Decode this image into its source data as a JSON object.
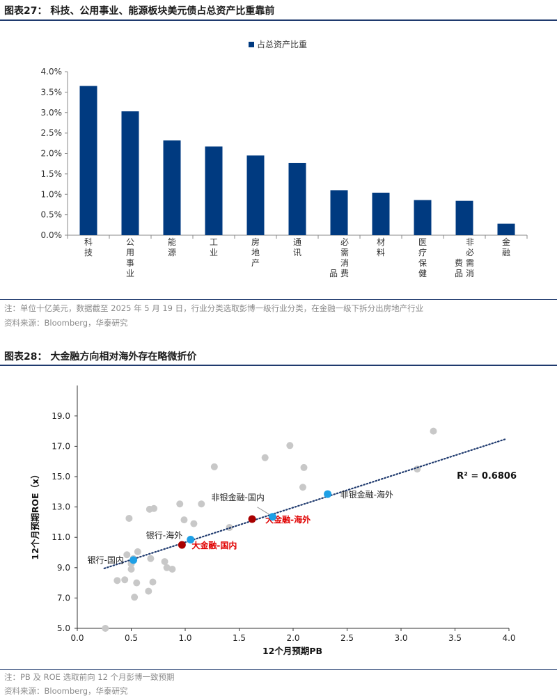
{
  "figure1": {
    "title": "图表27：  科技、公用事业、能源板块美元债占总资产比重靠前",
    "note": "注：单位十亿美元，数据截至 2025 年 5 月 19 日，行业分类选取彭博一级行业分类，在金融一级下拆分出房地产行业",
    "source": "资料来源：Bloomberg，华泰研究"
  },
  "figure2": {
    "title": "图表28：  大金融方向相对海外存在略微折价",
    "note": "注：PB 及 ROE 选取前向 12 个月彭博一致预期",
    "source": "资料来源：Bloomberg，华泰研究"
  },
  "colors": {
    "bar": "#003a80",
    "highlight_light": "#1ea0e6",
    "highlight_dark": "#a80000",
    "grey_point": "#c8c8c8",
    "trend": "#1f3a6e",
    "annotation_red": "#e00000",
    "rule": "#1f3a6e"
  },
  "chart_data": [
    {
      "type": "bar",
      "legend": "占总资产比重",
      "legend_position": "top",
      "categories": [
        "科技",
        "公用事业",
        "能源",
        "工业",
        "房地产",
        "通讯",
        "必需消费品",
        "材料",
        "医疗保健",
        "非必需消费品",
        "金融"
      ],
      "category_display": [
        "科\n技",
        "公\n用\n事\n业",
        "能\n源",
        "工\n业",
        "房\n地\n产",
        "通\n讯",
        "必\n需\n消\n费\n品",
        "材\n料",
        "医\n疗\n保\n健",
        "非\n必\n需\n消\n费\n品",
        "金\n融"
      ],
      "values": [
        3.65,
        3.03,
        2.32,
        2.17,
        1.95,
        1.77,
        1.1,
        1.04,
        0.86,
        0.84,
        0.28
      ],
      "ylim": [
        0,
        4.0
      ],
      "yticks": [
        "0.0%",
        "0.5%",
        "1.0%",
        "1.5%",
        "2.0%",
        "2.5%",
        "3.0%",
        "3.5%",
        "4.0%"
      ],
      "grid": false
    },
    {
      "type": "scatter",
      "xlabel": "12个月预期PB",
      "ylabel": "12个月预期ROE（x）",
      "xlim": [
        0,
        4.0
      ],
      "ylim": [
        5.0,
        20.0
      ],
      "xticks": [
        "0.0",
        "0.5",
        "1.0",
        "1.5",
        "2.0",
        "2.5",
        "3.0",
        "3.5",
        "4.0"
      ],
      "yticks": [
        "5.0",
        "7.0",
        "9.0",
        "11.0",
        "13.0",
        "15.0",
        "17.0",
        "19.0"
      ],
      "grid": false,
      "r_squared_label": "R² = 0.6806",
      "trendline": [
        [
          0.25,
          8.95
        ],
        [
          3.98,
          17.5
        ]
      ],
      "background_points": [
        [
          0.26,
          5.0
        ],
        [
          0.37,
          8.15
        ],
        [
          0.44,
          8.2
        ],
        [
          0.46,
          9.85
        ],
        [
          0.48,
          12.25
        ],
        [
          0.5,
          8.9
        ],
        [
          0.5,
          9.25
        ],
        [
          0.52,
          9.6
        ],
        [
          0.53,
          7.05
        ],
        [
          0.55,
          8.0
        ],
        [
          0.56,
          10.05
        ],
        [
          0.66,
          7.45
        ],
        [
          0.67,
          12.85
        ],
        [
          0.68,
          9.6
        ],
        [
          0.7,
          8.05
        ],
        [
          0.71,
          12.9
        ],
        [
          0.81,
          9.4
        ],
        [
          0.83,
          9.0
        ],
        [
          0.88,
          8.9
        ],
        [
          0.95,
          13.2
        ],
        [
          0.99,
          12.15
        ],
        [
          1.08,
          11.9
        ],
        [
          1.15,
          13.2
        ],
        [
          1.27,
          15.65
        ],
        [
          1.41,
          11.65
        ],
        [
          1.74,
          16.25
        ],
        [
          1.97,
          17.05
        ],
        [
          2.09,
          14.3
        ],
        [
          2.1,
          15.6
        ],
        [
          3.15,
          15.5
        ],
        [
          3.3,
          18.0
        ]
      ],
      "highlight_points": [
        {
          "label": "银行-国内",
          "x": 0.52,
          "y": 9.5,
          "color": "light"
        },
        {
          "label": "银行-海外",
          "x": 1.05,
          "y": 10.85,
          "color": "light"
        },
        {
          "label": "大金融-国内",
          "x": 0.97,
          "y": 10.5,
          "color": "dark"
        },
        {
          "label": "大金融-海外",
          "x": 1.62,
          "y": 12.2,
          "color": "dark"
        },
        {
          "label": "非银金融-国内",
          "x": 1.81,
          "y": 12.35,
          "color": "light"
        },
        {
          "label": "非银金融-海外",
          "x": 2.32,
          "y": 13.85,
          "color": "light"
        }
      ]
    }
  ]
}
